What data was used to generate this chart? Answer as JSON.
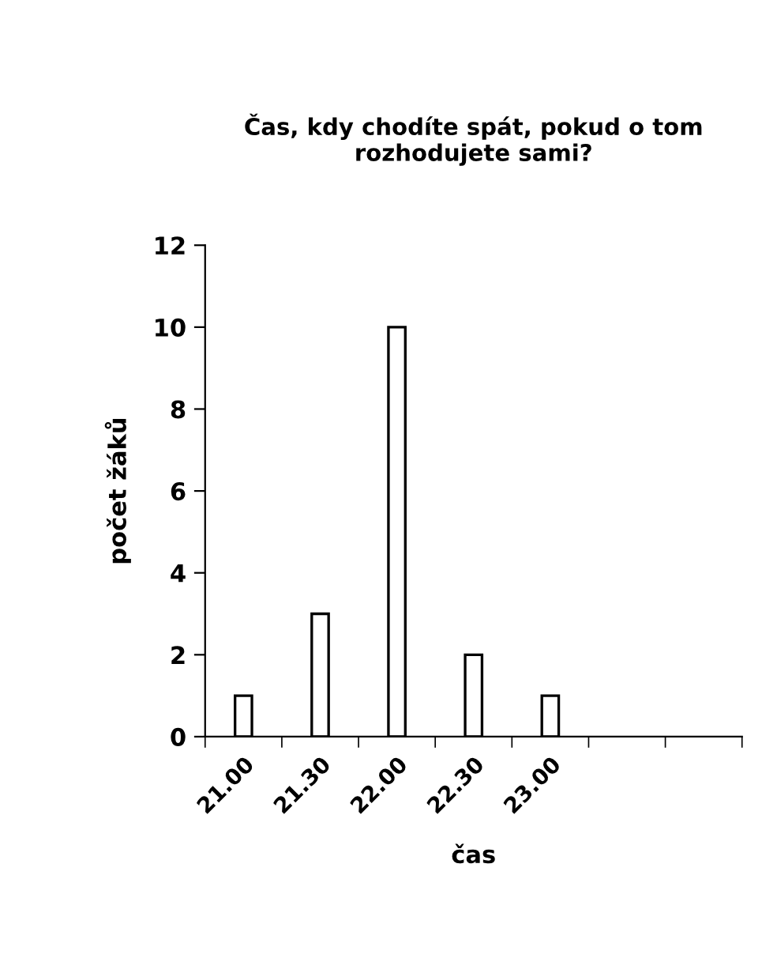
{
  "chart_data": {
    "type": "bar",
    "title": "Čas, kdy chodíte spát, pokud o tom rozhodujete sami?",
    "xlabel": "čas",
    "ylabel": "počet žáků",
    "categories": [
      "21.00",
      "21.30",
      "22.00",
      "22.30",
      "23.00",
      null,
      null
    ],
    "values": [
      1,
      3,
      10,
      2,
      1,
      null,
      null
    ],
    "color": "#ffffff",
    "ylim": [
      0,
      12
    ],
    "yticks": [
      0,
      2,
      4,
      6,
      8,
      10,
      12
    ],
    "grid": false,
    "legend": false
  }
}
